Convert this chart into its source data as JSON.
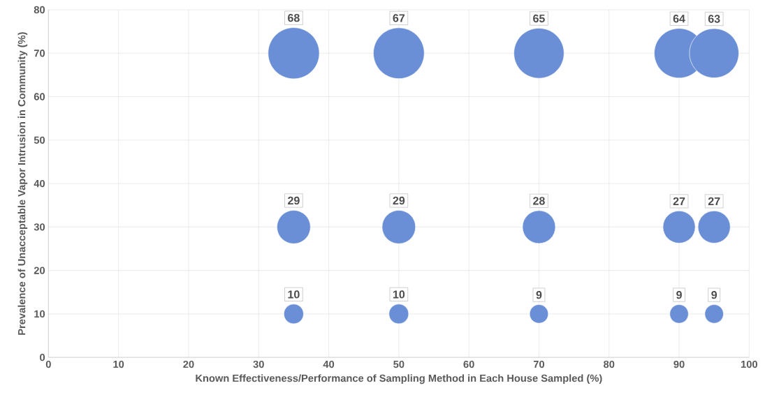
{
  "chart_data": {
    "type": "bubble",
    "xlabel": "Known Effectiveness/Performance of Sampling Method in Each House Sampled (%)",
    "ylabel": "Prevalence of Unacceptable Vapor Intrusion  in Community (%)",
    "xlim": [
      0,
      100
    ],
    "ylim": [
      0,
      80
    ],
    "xticks": [
      0,
      10,
      20,
      30,
      40,
      50,
      60,
      70,
      80,
      90,
      100
    ],
    "yticks": [
      0,
      10,
      20,
      30,
      40,
      50,
      60,
      70,
      80
    ],
    "grid": true,
    "series": [
      {
        "color": "#6a8fd6",
        "x": [
          35,
          50,
          70,
          90,
          95,
          35,
          50,
          70,
          90,
          95,
          35,
          50,
          70,
          90,
          95
        ],
        "values": [
          70,
          70,
          70,
          70,
          70,
          30,
          30,
          30,
          30,
          30,
          10,
          10,
          10,
          10,
          10
        ],
        "sizes": [
          68,
          67,
          65,
          64,
          63,
          29,
          29,
          28,
          27,
          27,
          10,
          10,
          9,
          9,
          9
        ],
        "value_labels": [
          "68",
          "67",
          "65",
          "64",
          "63",
          "29",
          "29",
          "28",
          "27",
          "27",
          "10",
          "10",
          "9",
          "9",
          "9"
        ]
      }
    ]
  }
}
